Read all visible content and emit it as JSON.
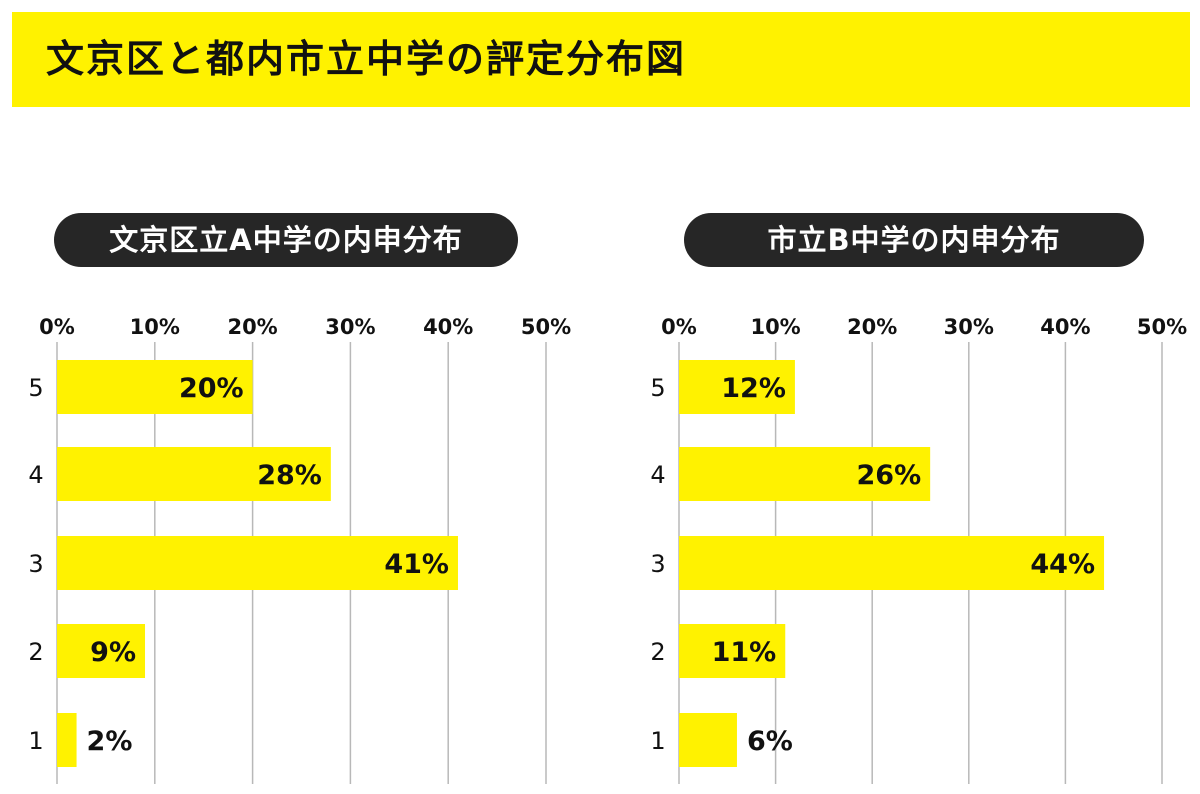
{
  "title": "文京区と都内市立中学の評定分布図",
  "colors": {
    "bar": "#fff200",
    "banner": "#fff200",
    "pill": "#262626",
    "grid": "#b8b8b8",
    "text": "#111111"
  },
  "chart_data": [
    {
      "type": "bar",
      "orientation": "horizontal",
      "title": "文京区立A中学の内申分布",
      "categories": [
        "5",
        "4",
        "3",
        "2",
        "1"
      ],
      "values": [
        20,
        28,
        41,
        9,
        2
      ],
      "data_labels": [
        "20%",
        "28%",
        "41%",
        "9%",
        "2%"
      ],
      "xlim": [
        0,
        50
      ],
      "x_ticks": [
        "0%",
        "10%",
        "20%",
        "30%",
        "40%",
        "50%"
      ],
      "tick_values": [
        0,
        10,
        20,
        30,
        40,
        50
      ],
      "grid": true
    },
    {
      "type": "bar",
      "orientation": "horizontal",
      "title": "市立B中学の内申分布",
      "categories": [
        "5",
        "4",
        "3",
        "2",
        "1"
      ],
      "values": [
        12,
        26,
        44,
        11,
        6
      ],
      "data_labels": [
        "12%",
        "26%",
        "44%",
        "11%",
        "6%"
      ],
      "xlim": [
        0,
        50
      ],
      "x_ticks": [
        "0%",
        "10%",
        "20%",
        "30%",
        "40%",
        "50%"
      ],
      "tick_values": [
        0,
        10,
        20,
        30,
        40,
        50
      ],
      "grid": true
    }
  ]
}
